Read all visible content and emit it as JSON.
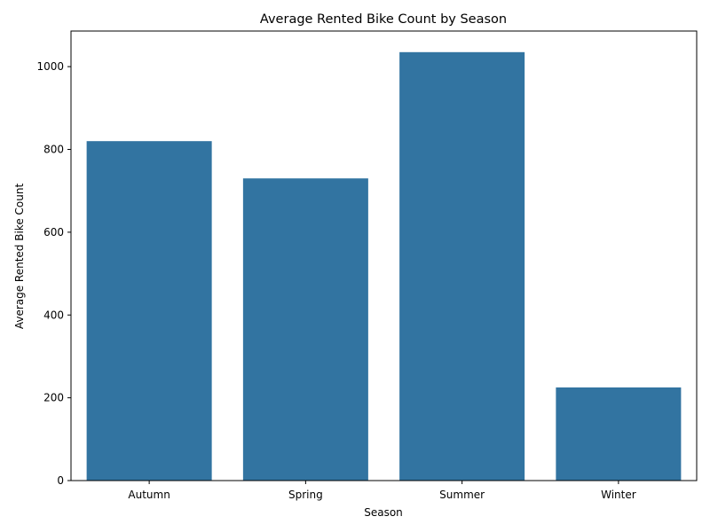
{
  "chart_data": {
    "type": "bar",
    "title": "Average Rented Bike Count by Season",
    "xlabel": "Season",
    "ylabel": "Average Rented Bike Count",
    "categories": [
      "Autumn",
      "Spring",
      "Summer",
      "Winter"
    ],
    "values": [
      820,
      730,
      1035,
      225
    ],
    "ylim": [
      0,
      1086
    ],
    "yticks": [
      0,
      200,
      400,
      600,
      800,
      1000
    ],
    "grid": false,
    "bar_color": "#3274a1"
  }
}
